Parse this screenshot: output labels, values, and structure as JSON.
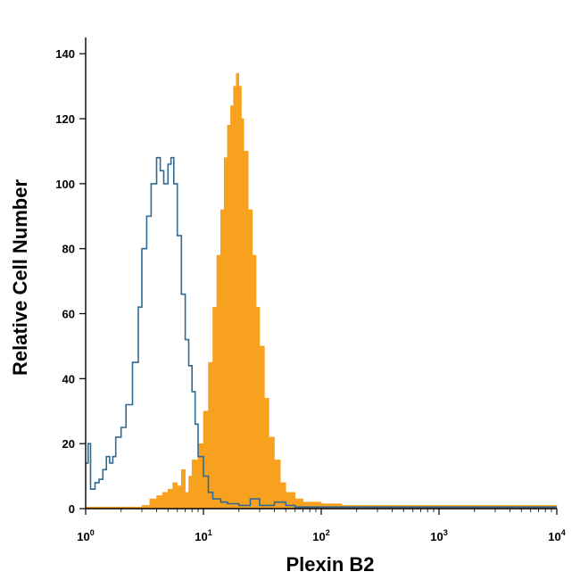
{
  "chart_data": {
    "type": "area",
    "xlabel": "Plexin B2",
    "ylabel": "Relative Cell Number",
    "x_scale": "log",
    "xlim": [
      1,
      10000
    ],
    "ylim": [
      0,
      145
    ],
    "grid": false,
    "legend": "none",
    "x_ticks": [
      {
        "value": 1,
        "base": "10",
        "exp": "0"
      },
      {
        "value": 10,
        "base": "10",
        "exp": "1"
      },
      {
        "value": 100,
        "base": "10",
        "exp": "2"
      },
      {
        "value": 1000,
        "base": "10",
        "exp": "3"
      },
      {
        "value": 10000,
        "base": "10",
        "exp": "4"
      }
    ],
    "y_ticks": [
      {
        "value": 0,
        "label": "0"
      },
      {
        "value": 20,
        "label": "20"
      },
      {
        "value": 40,
        "label": "40"
      },
      {
        "value": 60,
        "label": "60"
      },
      {
        "value": 80,
        "label": "80"
      },
      {
        "value": 100,
        "label": "100"
      },
      {
        "value": 120,
        "label": "120"
      },
      {
        "value": 140,
        "label": "140"
      }
    ],
    "series": [
      {
        "style": "filled",
        "color": "#f7a11e",
        "x": [
          1,
          2,
          3,
          3.5,
          4,
          4.5,
          5,
          5.5,
          6,
          6.5,
          7,
          7.5,
          8,
          9,
          10,
          11,
          12,
          13,
          14,
          15,
          16,
          17,
          18,
          19,
          20,
          21,
          22,
          24,
          26,
          28,
          30,
          33,
          36,
          40,
          45,
          50,
          60,
          70,
          80,
          100,
          150,
          200,
          300,
          500,
          1000,
          3000,
          10000
        ],
        "y": [
          0.5,
          0.5,
          1,
          3,
          4,
          5,
          6,
          8,
          7,
          12,
          5,
          10,
          15,
          20,
          30,
          45,
          62,
          78,
          92,
          108,
          118,
          124,
          130,
          134,
          130,
          120,
          110,
          92,
          78,
          62,
          50,
          34,
          22,
          15,
          8,
          5,
          3,
          2,
          2,
          1.5,
          1,
          1,
          1,
          1,
          1,
          1,
          1
        ]
      },
      {
        "style": "line",
        "color": "#2f6a94",
        "x": [
          1,
          1.05,
          1.1,
          1.2,
          1.3,
          1.4,
          1.5,
          1.6,
          1.7,
          1.8,
          2.0,
          2.2,
          2.5,
          2.8,
          3.0,
          3.3,
          3.6,
          4.0,
          4.3,
          4.6,
          5.0,
          5.3,
          5.6,
          6.0,
          6.5,
          7.0,
          7.5,
          8.0,
          8.5,
          9.0,
          10,
          11,
          12,
          14,
          16,
          20,
          25,
          30,
          40,
          50,
          60,
          100,
          1000,
          10000
        ],
        "y": [
          14,
          20,
          6,
          8,
          9,
          12,
          16,
          14,
          16,
          22,
          25,
          32,
          45,
          62,
          80,
          90,
          100,
          108,
          104,
          100,
          106,
          108,
          100,
          84,
          66,
          52,
          44,
          36,
          26,
          16,
          10,
          5,
          3,
          2,
          1.5,
          1,
          3,
          1,
          2,
          1,
          0.5,
          0.5,
          0.5,
          0.5
        ]
      }
    ]
  }
}
